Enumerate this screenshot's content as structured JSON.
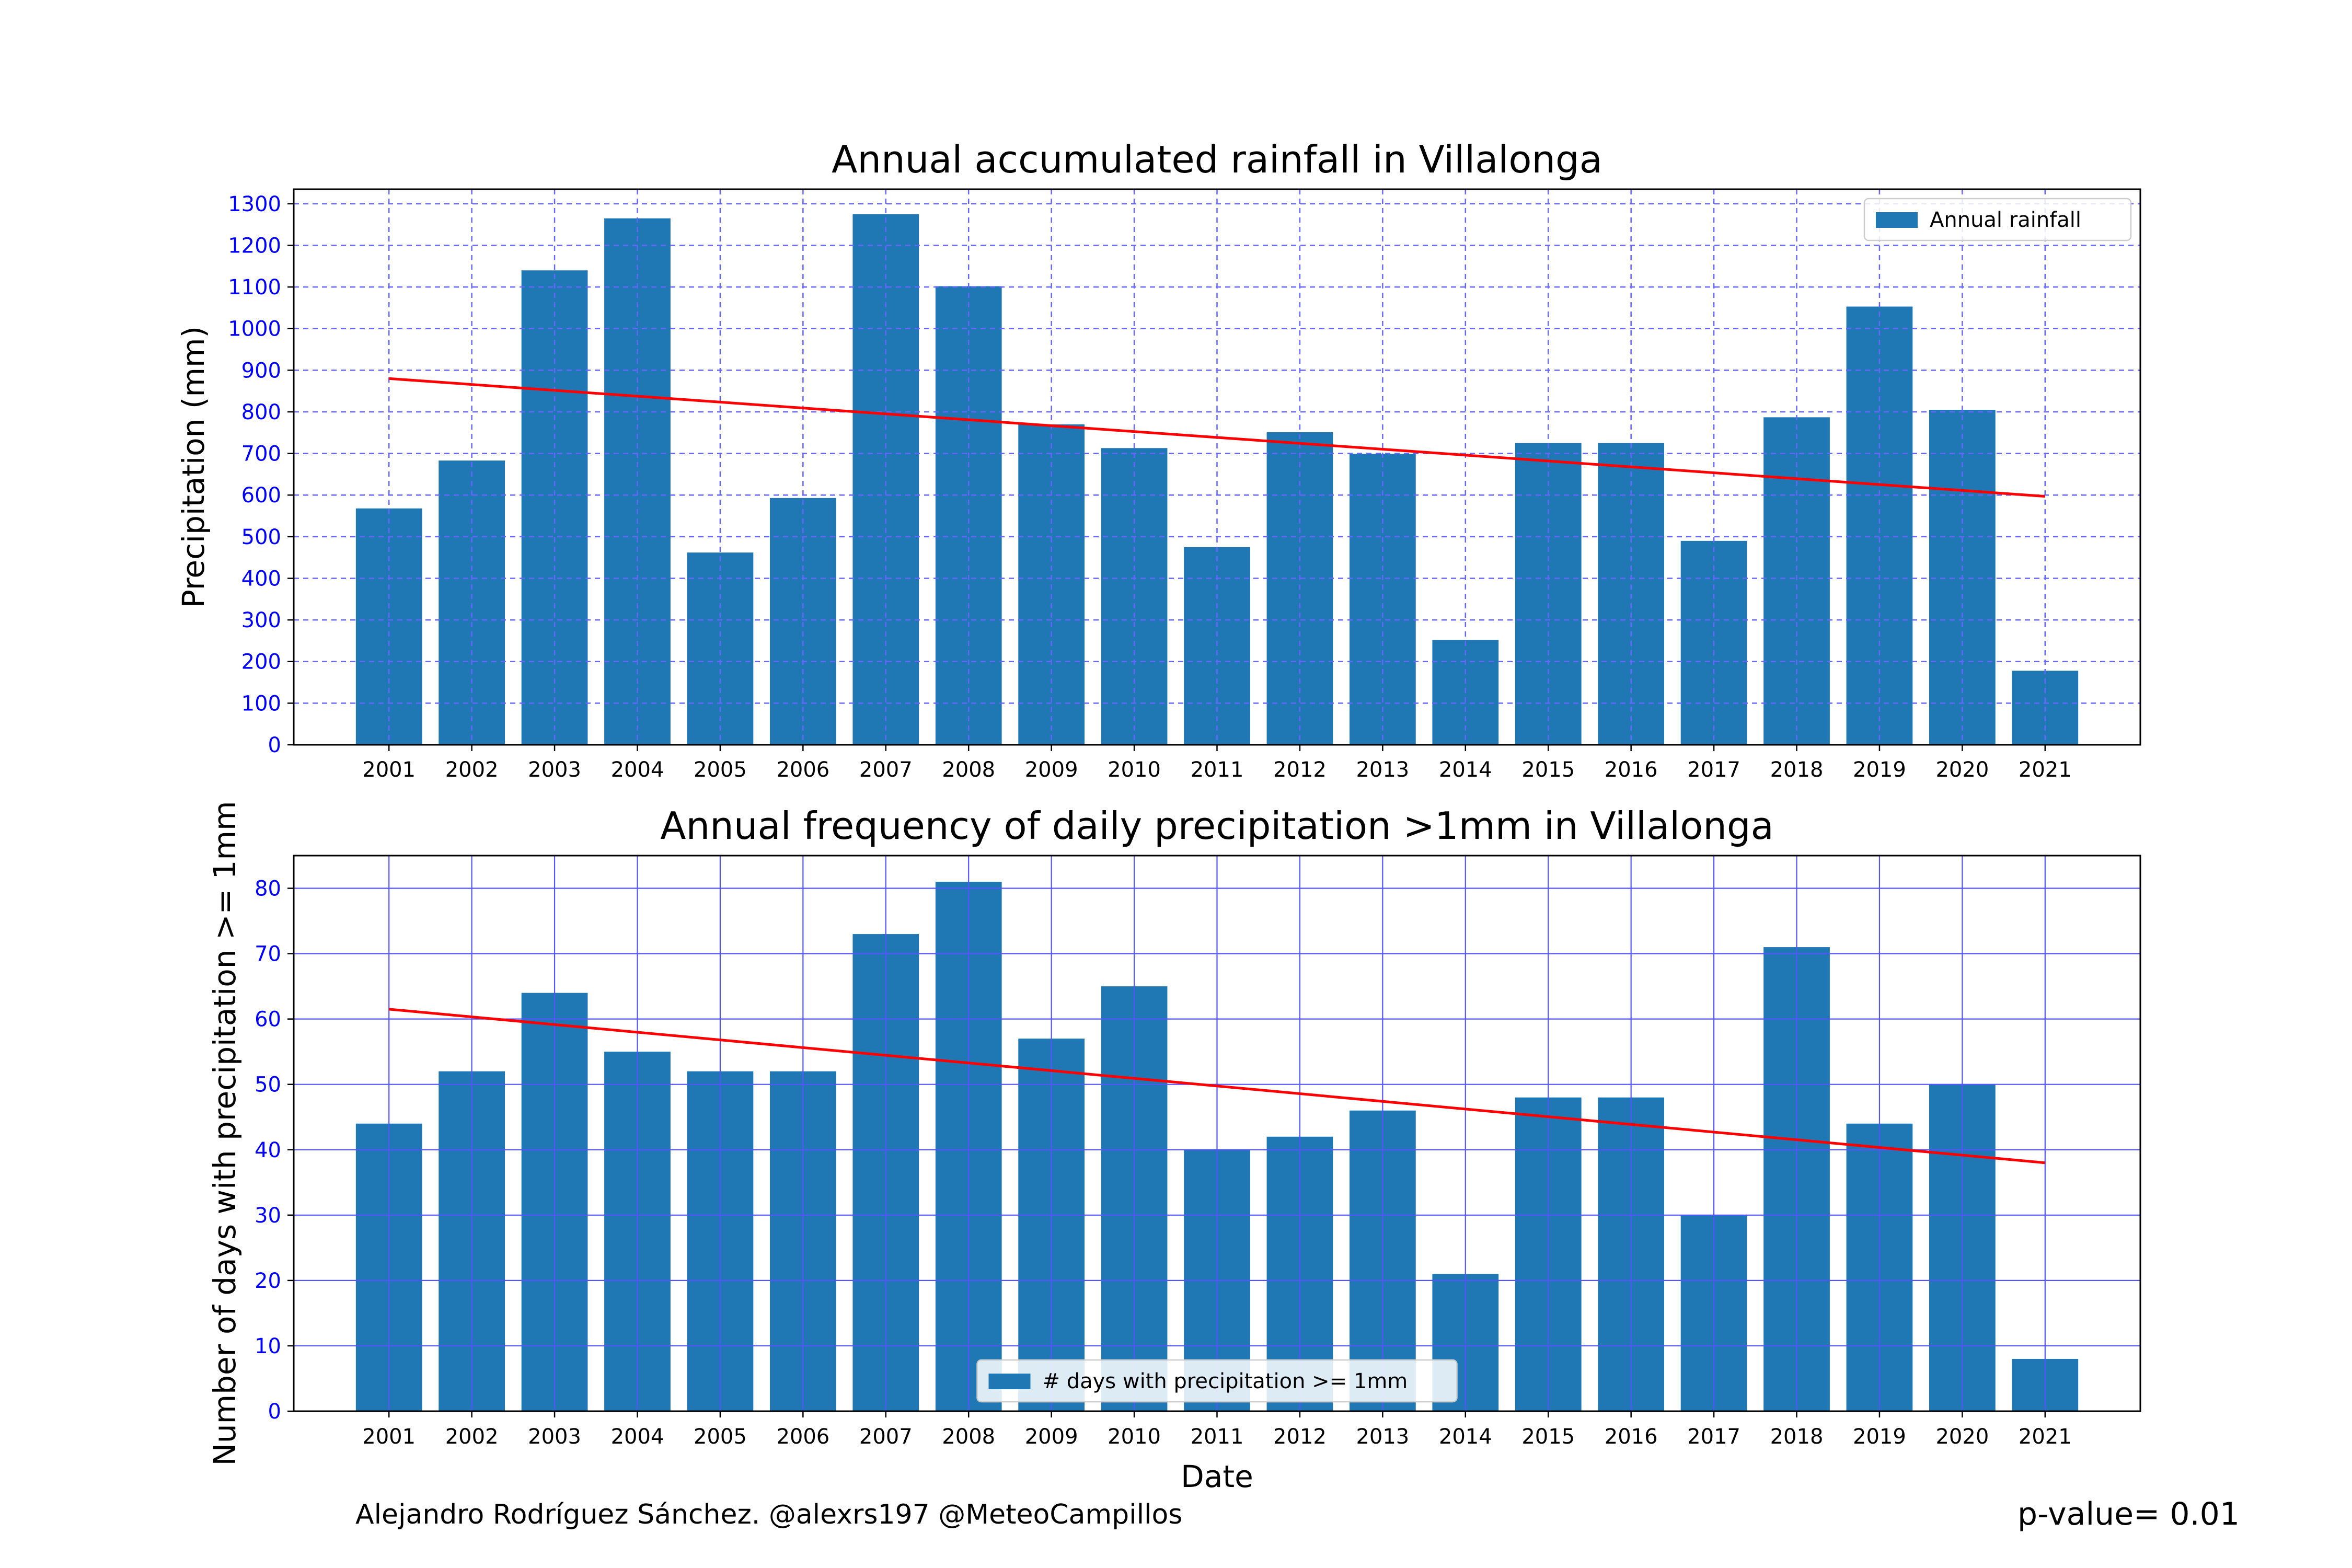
{
  "chart_data": [
    {
      "type": "bar",
      "title": "Annual accumulated rainfall in Villalonga",
      "xlabel": "",
      "ylabel": "Precipitation (mm)",
      "categories": [
        "2001",
        "2002",
        "2003",
        "2004",
        "2005",
        "2006",
        "2007",
        "2008",
        "2009",
        "2010",
        "2011",
        "2012",
        "2013",
        "2014",
        "2015",
        "2016",
        "2017",
        "2018",
        "2019",
        "2020",
        "2021"
      ],
      "series": [
        {
          "name": "Annual rainfall",
          "values": [
            568,
            683,
            1140,
            1265,
            462,
            593,
            1275,
            1102,
            770,
            713,
            475,
            751,
            699,
            252,
            725,
            725,
            490,
            787,
            1053,
            805,
            178
          ]
        }
      ],
      "trend_line": {
        "start": 880,
        "end": 597,
        "color": "#ff0000"
      },
      "ylim": [
        0,
        1335
      ],
      "yticks": [
        0,
        100,
        200,
        300,
        400,
        500,
        600,
        700,
        800,
        900,
        1000,
        1100,
        1200,
        1300
      ],
      "grid": true,
      "grid_style": "dashed",
      "legend_position": "upper right",
      "bar_color": "#1f77b4",
      "tick_label_color": "#0000ff"
    },
    {
      "type": "bar",
      "title": "Annual frequency of daily precipitation >1mm in Villalonga",
      "xlabel": "Date",
      "ylabel": "Number of days with precipitation >= 1mm",
      "categories": [
        "2001",
        "2002",
        "2003",
        "2004",
        "2005",
        "2006",
        "2007",
        "2008",
        "2009",
        "2010",
        "2011",
        "2012",
        "2013",
        "2014",
        "2015",
        "2016",
        "2017",
        "2018",
        "2019",
        "2020",
        "2021"
      ],
      "series": [
        {
          "name": "# days with precipitation >= 1mm",
          "values": [
            44,
            52,
            64,
            55,
            52,
            52,
            73,
            81,
            57,
            65,
            40,
            42,
            46,
            21,
            48,
            48,
            30,
            71,
            44,
            50,
            8
          ]
        }
      ],
      "trend_line": {
        "start": 61.5,
        "end": 38,
        "color": "#ff0000"
      },
      "ylim": [
        0,
        85
      ],
      "yticks": [
        0,
        10,
        20,
        30,
        40,
        50,
        60,
        70,
        80
      ],
      "grid": true,
      "grid_style": "solid",
      "legend_position": "lower center",
      "bar_color": "#1f77b4",
      "tick_label_color": "#0000ff"
    }
  ],
  "footer": {
    "credit": "Alejandro Rodríguez Sánchez. @alexrs197 @MeteoCampillos",
    "pvalue": "p-value= 0.01"
  }
}
